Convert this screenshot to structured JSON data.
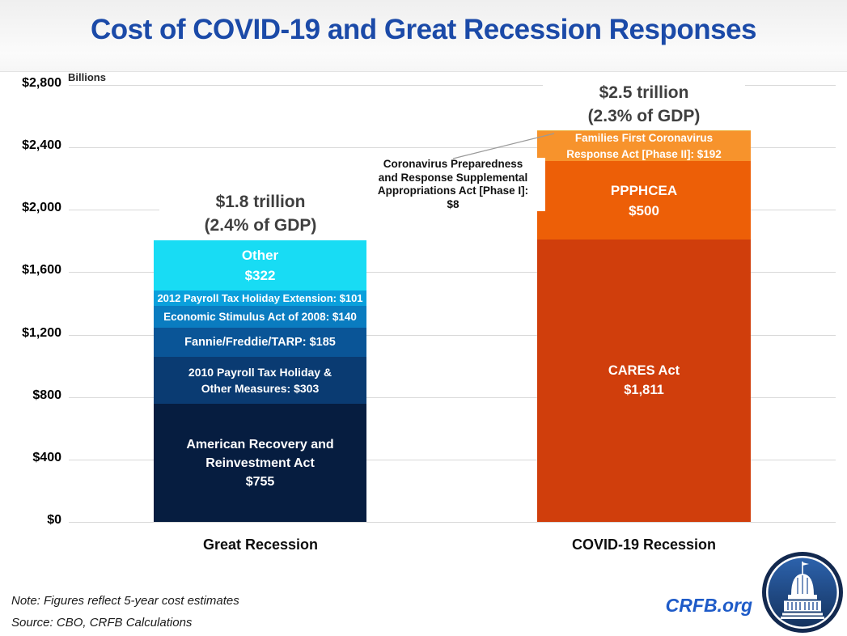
{
  "chart_data": {
    "type": "bar",
    "stacked": true,
    "title": "Cost of COVID-19 and Great Recession Responses",
    "unit_label": "Billions",
    "ylim": [
      0,
      2800
    ],
    "ytick_interval": 400,
    "grid": true,
    "yticks": [
      {
        "value": 0,
        "label": "$0"
      },
      {
        "value": 400,
        "label": "$400"
      },
      {
        "value": 800,
        "label": "$800"
      },
      {
        "value": 1200,
        "label": "$1,200"
      },
      {
        "value": 1600,
        "label": "$1,600"
      },
      {
        "value": 2000,
        "label": "$2,000"
      },
      {
        "value": 2400,
        "label": "$2,400"
      },
      {
        "value": 2800,
        "label": "$2,800"
      }
    ],
    "categories": [
      "Great Recession",
      "COVID-19 Recession"
    ],
    "totals": [
      {
        "line1": "$1.8 trillion",
        "line2": "(2.4% of GDP)"
      },
      {
        "line1": "$2.5 trillion",
        "line2": "(2.3% of GDP)"
      }
    ],
    "bars": [
      {
        "id": "great-recession",
        "category": "Great Recession",
        "total_billions": 1806,
        "segments": [
          {
            "name": "American Recovery and Reinvestment Act",
            "value": 755,
            "color": "#061D40",
            "label_lines": [
              "American Recovery and",
              "Reinvestment Act",
              "$755"
            ],
            "font_px": 16
          },
          {
            "name": "2010 Payroll Tax Holiday & Other Measures",
            "value": 303,
            "color": "#0A3B72",
            "label_lines": [
              "2010 Payroll Tax Holiday &",
              "Other Measures: $303"
            ],
            "font_px": 14
          },
          {
            "name": "Fannie/Freddie/TARP",
            "value": 185,
            "color": "#0A5597",
            "label_lines": [
              "Fannie/Freddie/TARP: $185"
            ],
            "font_px": 14.5
          },
          {
            "name": "Economic Stimulus Act of 2008",
            "value": 140,
            "color": "#0A7CC0",
            "label_lines": [
              "Economic Stimulus Act of 2008: $140"
            ],
            "font_px": 13.5
          },
          {
            "name": "2012 Payroll Tax Holiday Extension",
            "value": 101,
            "color": "#0AA0DC",
            "label_lines": [
              "2012 Payroll Tax Holiday Extension: $101"
            ],
            "font_px": 13
          },
          {
            "name": "Other",
            "value": 322,
            "color": "#18DCF4",
            "label_lines": [
              "Other",
              "$322"
            ],
            "font_px": 17
          }
        ]
      },
      {
        "id": "covid-19-recession",
        "category": "COVID-19 Recession",
        "total_billions": 2511,
        "segments": [
          {
            "name": "CARES Act",
            "value": 1811,
            "color": "#D03E0C",
            "label_lines": [
              "CARES Act",
              "$1,811"
            ],
            "font_px": 16.5
          },
          {
            "name": "PPPHCEA",
            "value": 500,
            "color": "#ED5F07",
            "label_lines": [
              "PPPHCEA",
              "$500"
            ],
            "font_px": 17
          },
          {
            "name": "Families First Coronavirus Response Act [Phase II]",
            "value": 192,
            "color": "#F7932C",
            "label_lines": [
              "Families First Coronavirus",
              "Response Act [Phase II]: $192"
            ],
            "font_px": 13.5
          },
          {
            "name": "Coronavirus Preparedness and Response Supplemental Appropriations Act [Phase I]",
            "value": 8,
            "color": "#EDB64C",
            "label_lines": [],
            "font_px": 0
          }
        ]
      }
    ],
    "annotation": {
      "target": "Coronavirus Preparedness and Response Supplemental Appropriations Act [Phase I]",
      "value_billions": 8,
      "lines": [
        "Coronavirus Preparedness",
        "and Response Supplemental",
        "Appropriations Act [Phase I]:",
        "$8"
      ]
    }
  },
  "footer": {
    "note": "Note: Figures reflect 5-year cost estimates",
    "source": "Source: CBO, CRFB Calculations",
    "brand": "CRFB.org"
  },
  "colors": {
    "title_blue": "#1B4AA8",
    "gridline": "#D9D9D9",
    "total_label_gray": "#3F3F3F",
    "brand_blue": "#1E5BC8",
    "logo_navy": "#13294F",
    "logo_disc_top": "#2C62AC",
    "logo_disc_bottom": "#15335F"
  }
}
